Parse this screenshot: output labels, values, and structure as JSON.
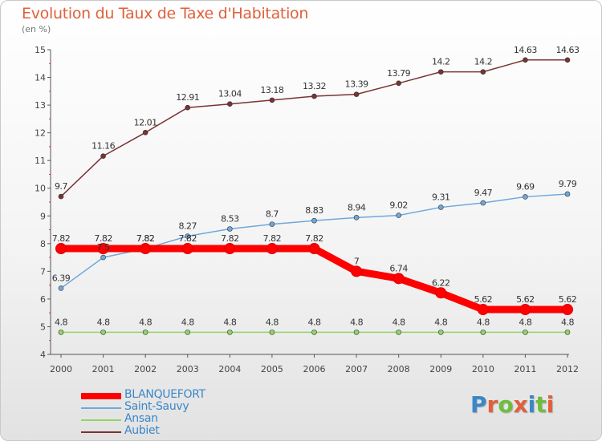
{
  "chart_title": "Evolution du Taux de Taxe d'Habitation",
  "chart_unit": "(en %)",
  "logo": {
    "text": "Proxiti",
    "letters": [
      "P",
      "r",
      "o",
      "x",
      "i",
      "t",
      "i"
    ],
    "colors": [
      "#3a87c8",
      "#e0603c",
      "#6cbf3c",
      "#e0603c",
      "#3a87c8",
      "#6cbf3c",
      "#e0603c"
    ]
  },
  "chart_data": {
    "type": "line",
    "title": "Evolution du Taux de Taxe d'Habitation",
    "ylabel": "(en %)",
    "xlabel": "",
    "x": [
      "2000",
      "2001",
      "2002",
      "2003",
      "2004",
      "2005",
      "2006",
      "2007",
      "2008",
      "2009",
      "2010",
      "2011",
      "2012"
    ],
    "ylim": [
      4,
      15
    ],
    "yticks": [
      "4",
      "5",
      "6",
      "7",
      "8",
      "9",
      "10",
      "11",
      "12",
      "13",
      "14",
      "15"
    ],
    "grid": false,
    "legend_position": "bottom-left",
    "series": [
      {
        "name": "BLANQUEFORT",
        "color": "#ff0000",
        "values": [
          7.82,
          7.82,
          7.82,
          7.82,
          7.82,
          7.82,
          7.82,
          7,
          6.74,
          6.22,
          5.62,
          5.62,
          5.62
        ],
        "labels": [
          "7.82",
          "7.82",
          "7.82",
          "7.82",
          "7.82",
          "7.82",
          "7.82",
          "7",
          "6.74",
          "6.22",
          "5.62",
          "5.62",
          "5.62"
        ]
      },
      {
        "name": "Saint-Sauvy",
        "color": "#6fa8dc",
        "values": [
          6.39,
          7.5,
          7.82,
          8.27,
          8.53,
          8.7,
          8.83,
          8.94,
          9.02,
          9.31,
          9.47,
          9.69,
          9.79
        ],
        "labels": [
          "6.39",
          "7.5",
          "7.82",
          "8.27",
          "8.53",
          "8.7",
          "8.83",
          "8.94",
          "9.02",
          "9.31",
          "9.47",
          "9.69",
          "9.79"
        ]
      },
      {
        "name": "Ansan",
        "color": "#93d46a",
        "values": [
          4.8,
          4.8,
          4.8,
          4.8,
          4.8,
          4.8,
          4.8,
          4.8,
          4.8,
          4.8,
          4.8,
          4.8,
          4.8
        ],
        "labels": [
          "4.8",
          "4.8",
          "4.8",
          "4.8",
          "4.8",
          "4.8",
          "4.8",
          "4.8",
          "4.8",
          "4.8",
          "4.8",
          "4.8",
          "4.8"
        ]
      },
      {
        "name": "Aubiet",
        "color": "#7a3333",
        "values": [
          9.7,
          11.16,
          12.01,
          12.91,
          13.04,
          13.18,
          13.32,
          13.39,
          13.79,
          14.2,
          14.2,
          14.63,
          14.63
        ],
        "labels": [
          "9.7",
          "11.16",
          "12.01",
          "12.91",
          "13.04",
          "13.18",
          "13.32",
          "13.39",
          "13.79",
          "14.2",
          "14.2",
          "14.63",
          "14.63"
        ]
      }
    ]
  }
}
